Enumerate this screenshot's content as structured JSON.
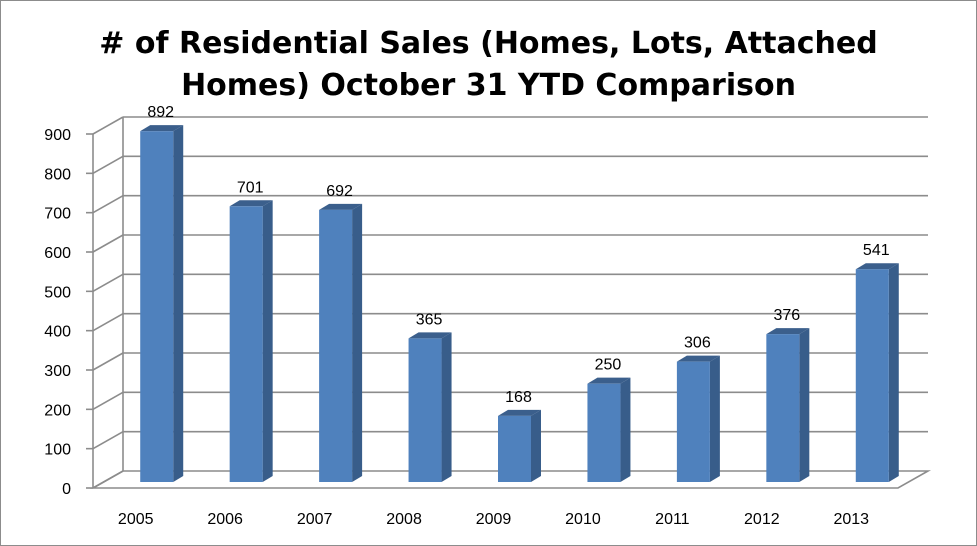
{
  "chart_data": {
    "type": "bar",
    "title_lines": [
      "# of Residential Sales (Homes, Lots, Attached",
      "Homes) October 31 YTD Comparison"
    ],
    "categories": [
      "2005",
      "2006",
      "2007",
      "2008",
      "2009",
      "2010",
      "2011",
      "2012",
      "2013"
    ],
    "values": [
      892,
      701,
      692,
      365,
      168,
      250,
      306,
      376,
      541
    ],
    "data_labels": [
      "892",
      "701",
      "692",
      "365",
      "168",
      "250",
      "306",
      "376",
      "541"
    ],
    "ylim": [
      0,
      900
    ],
    "yticks": [
      0,
      100,
      200,
      300,
      400,
      500,
      600,
      700,
      800,
      900
    ],
    "ytick_labels": [
      "0",
      "100",
      "200",
      "300",
      "400",
      "500",
      "600",
      "700",
      "800",
      "900"
    ],
    "grid": true,
    "legend": "none",
    "style": "3d-column",
    "colors": {
      "bar_front": "#4f81bd",
      "bar_side": "#385d8a",
      "bar_top": "#3b5f8c",
      "gridline": "#8c8c8c",
      "axis": "#8c8c8c"
    }
  }
}
